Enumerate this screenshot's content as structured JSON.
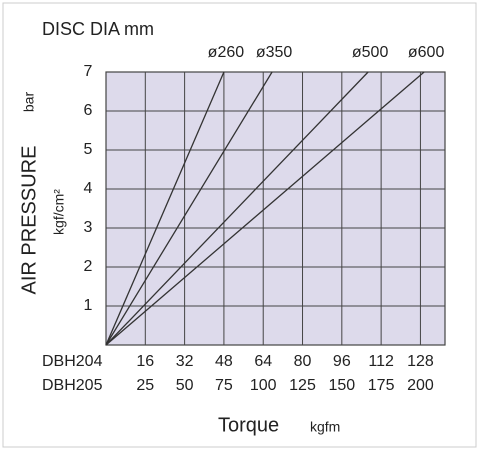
{
  "chart_data": {
    "type": "line",
    "title": "DISC DIA mm",
    "y_label": "AIR PRESSURE",
    "y_unit": "bar",
    "y_unit2": "kgf/cm²",
    "x_label": "Torque",
    "x_unit": "kgfm",
    "x_rows": [
      "DBH204",
      "DBH205"
    ],
    "xlim": [
      0,
      138
    ],
    "xticks": [
      16,
      32,
      48,
      64,
      80,
      96,
      112,
      128
    ],
    "x2ticks": [
      {
        "value": 16,
        "label": "25"
      },
      {
        "value": 32,
        "label": "50"
      },
      {
        "value": 48,
        "label": "75"
      },
      {
        "value": 64,
        "label": "100"
      },
      {
        "value": 80,
        "label": "125"
      },
      {
        "value": 96,
        "label": "150"
      },
      {
        "value": 112,
        "label": "175"
      },
      {
        "value": 128,
        "label": "200"
      }
    ],
    "ylim": [
      0,
      7
    ],
    "yticks": [
      1,
      2,
      3,
      4,
      5,
      6,
      7
    ],
    "grid": true,
    "series": [
      {
        "name": "ø260",
        "color": "#333333",
        "x": [
          0,
          48
        ],
        "values": [
          0,
          7
        ]
      },
      {
        "name": "ø350",
        "color": "#333333",
        "x": [
          0,
          67.6
        ],
        "values": [
          0,
          7
        ]
      },
      {
        "name": "ø500",
        "color": "#333333",
        "x": [
          0,
          106.7
        ],
        "values": [
          0,
          7
        ]
      },
      {
        "name": "ø600",
        "color": "#333333",
        "x": [
          0,
          129.5
        ],
        "values": [
          0,
          7
        ]
      }
    ]
  }
}
